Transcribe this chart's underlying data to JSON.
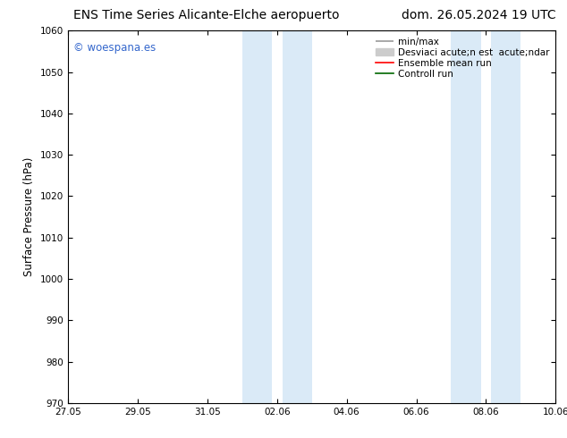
{
  "title_left": "ENS Time Series Alicante-Elche aeropuerto",
  "title_right": "dom. 26.05.2024 19 UTC",
  "ylabel": "Surface Pressure (hPa)",
  "ylim": [
    970,
    1060
  ],
  "yticks": [
    970,
    980,
    990,
    1000,
    1010,
    1020,
    1030,
    1040,
    1050,
    1060
  ],
  "xtick_labels": [
    "27.05",
    "29.05",
    "31.05",
    "02.06",
    "04.06",
    "06.06",
    "08.06",
    "10.06"
  ],
  "xmin": 0,
  "xmax": 14,
  "xtick_positions": [
    0,
    2,
    4,
    6,
    8,
    10,
    12,
    14
  ],
  "shaded_bands": [
    {
      "xstart": 5.0,
      "xend": 5.85
    },
    {
      "xstart": 6.15,
      "xend": 7.0
    },
    {
      "xstart": 11.0,
      "xend": 11.85
    },
    {
      "xstart": 12.15,
      "xend": 13.0
    }
  ],
  "shaded_color": "#daeaf7",
  "background_color": "#ffffff",
  "watermark_text": "© woespana.es",
  "watermark_color": "#3366cc",
  "legend_label_minmax": "min/max",
  "legend_label_std": "Desviaci acute;n est  acute;ndar",
  "legend_label_ens": "Ensemble mean run",
  "legend_label_ctrl": "Controll run",
  "legend_color_minmax": "#999999",
  "legend_color_std": "#cccccc",
  "legend_color_ens": "#ff0000",
  "legend_color_ctrl": "#006600",
  "title_fontsize": 10,
  "tick_fontsize": 7.5,
  "ylabel_fontsize": 8.5,
  "legend_fontsize": 7.5
}
